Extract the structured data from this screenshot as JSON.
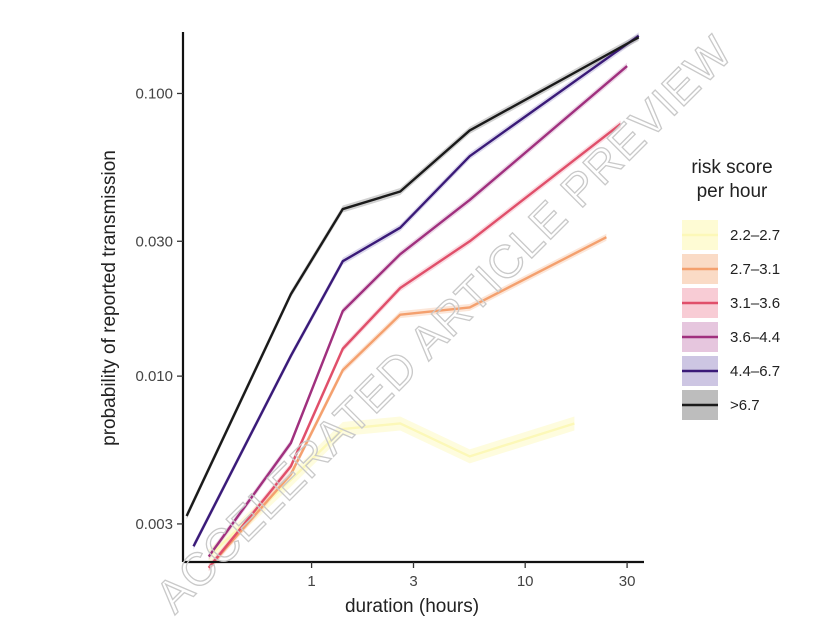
{
  "chart_data": {
    "type": "line",
    "xlabel": "duration (hours)",
    "ylabel": "probability of reported transmission",
    "x_scale": "log",
    "y_scale": "log",
    "xlim": [
      0.25,
      36
    ],
    "ylim": [
      0.0022,
      0.165
    ],
    "x_ticks": [
      {
        "value": 1,
        "label": "1"
      },
      {
        "value": 3,
        "label": "3"
      },
      {
        "value": 10,
        "label": "10"
      },
      {
        "value": 30,
        "label": "30"
      }
    ],
    "y_ticks": [
      {
        "value": 0.003,
        "label": "0.003"
      },
      {
        "value": 0.01,
        "label": "0.010"
      },
      {
        "value": 0.03,
        "label": "0.030"
      },
      {
        "value": 0.1,
        "label": "0.100"
      }
    ],
    "grid": false,
    "legend": {
      "title_lines": [
        "risk score",
        "per hour"
      ],
      "position": "right"
    },
    "series": [
      {
        "name": "2.2–2.7",
        "color": "#fcf8b8",
        "band_color": "#fdf9c2",
        "x": [
          0.33,
          0.8,
          1.4,
          2.6,
          5.5,
          17
        ],
        "y": [
          0.0023,
          0.0043,
          0.0065,
          0.0068,
          0.0052,
          0.0068
        ]
      },
      {
        "name": "2.7–3.1",
        "color": "#f4a06e",
        "band_color": "#f8c8a8",
        "x": [
          0.33,
          0.8,
          1.4,
          2.6,
          5.5,
          24
        ],
        "y": [
          0.0021,
          0.0045,
          0.0105,
          0.0165,
          0.0175,
          0.031
        ]
      },
      {
        "name": "3.1–3.6",
        "color": "#e04f6a",
        "band_color": "#f4b0be",
        "x": [
          0.33,
          0.8,
          1.4,
          2.6,
          5.5,
          28
        ],
        "y": [
          0.0021,
          0.0048,
          0.0125,
          0.0205,
          0.03,
          0.078
        ]
      },
      {
        "name": "3.6–4.4",
        "color": "#a0307e",
        "band_color": "#d8a8cc",
        "x": [
          0.33,
          0.8,
          1.4,
          2.6,
          5.5,
          30
        ],
        "y": [
          0.0023,
          0.0058,
          0.017,
          0.027,
          0.042,
          0.125
        ]
      },
      {
        "name": "4.4–6.7",
        "color": "#3a1a78",
        "band_color": "#b2a8d4",
        "x": [
          0.28,
          0.8,
          1.4,
          2.6,
          5.5,
          34
        ],
        "y": [
          0.0025,
          0.0118,
          0.0255,
          0.0335,
          0.06,
          0.16
        ]
      },
      {
        "name": ">6.7",
        "color": "#1a1a1a",
        "band_color": "#9a9a9a",
        "x": [
          0.26,
          0.8,
          1.4,
          2.6,
          5.5,
          34
        ],
        "y": [
          0.0032,
          0.0195,
          0.039,
          0.045,
          0.074,
          0.158
        ]
      }
    ]
  },
  "watermark": "ACCELERATED ARTICLE PREVIEW"
}
